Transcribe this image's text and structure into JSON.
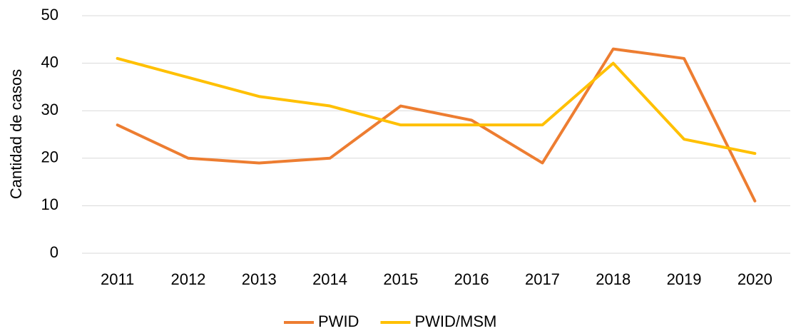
{
  "chart_data": {
    "type": "line",
    "y_label": "Cantidad de casos",
    "categories": [
      "2011",
      "2012",
      "2013",
      "2014",
      "2015",
      "2016",
      "2017",
      "2018",
      "2019",
      "2020"
    ],
    "series": [
      {
        "name": "PWID",
        "color": "#ED7D31",
        "values": [
          27,
          20,
          19,
          20,
          31,
          28,
          19,
          43,
          41,
          11
        ]
      },
      {
        "name": "PWID/MSM",
        "color": "#FFC000",
        "values": [
          41,
          37,
          33,
          31,
          27,
          27,
          27,
          40,
          24,
          21
        ]
      }
    ],
    "ylim": [
      0,
      50
    ],
    "yticks": [
      0,
      10,
      20,
      30,
      40,
      50
    ],
    "grid": true,
    "legend": "bottom"
  }
}
